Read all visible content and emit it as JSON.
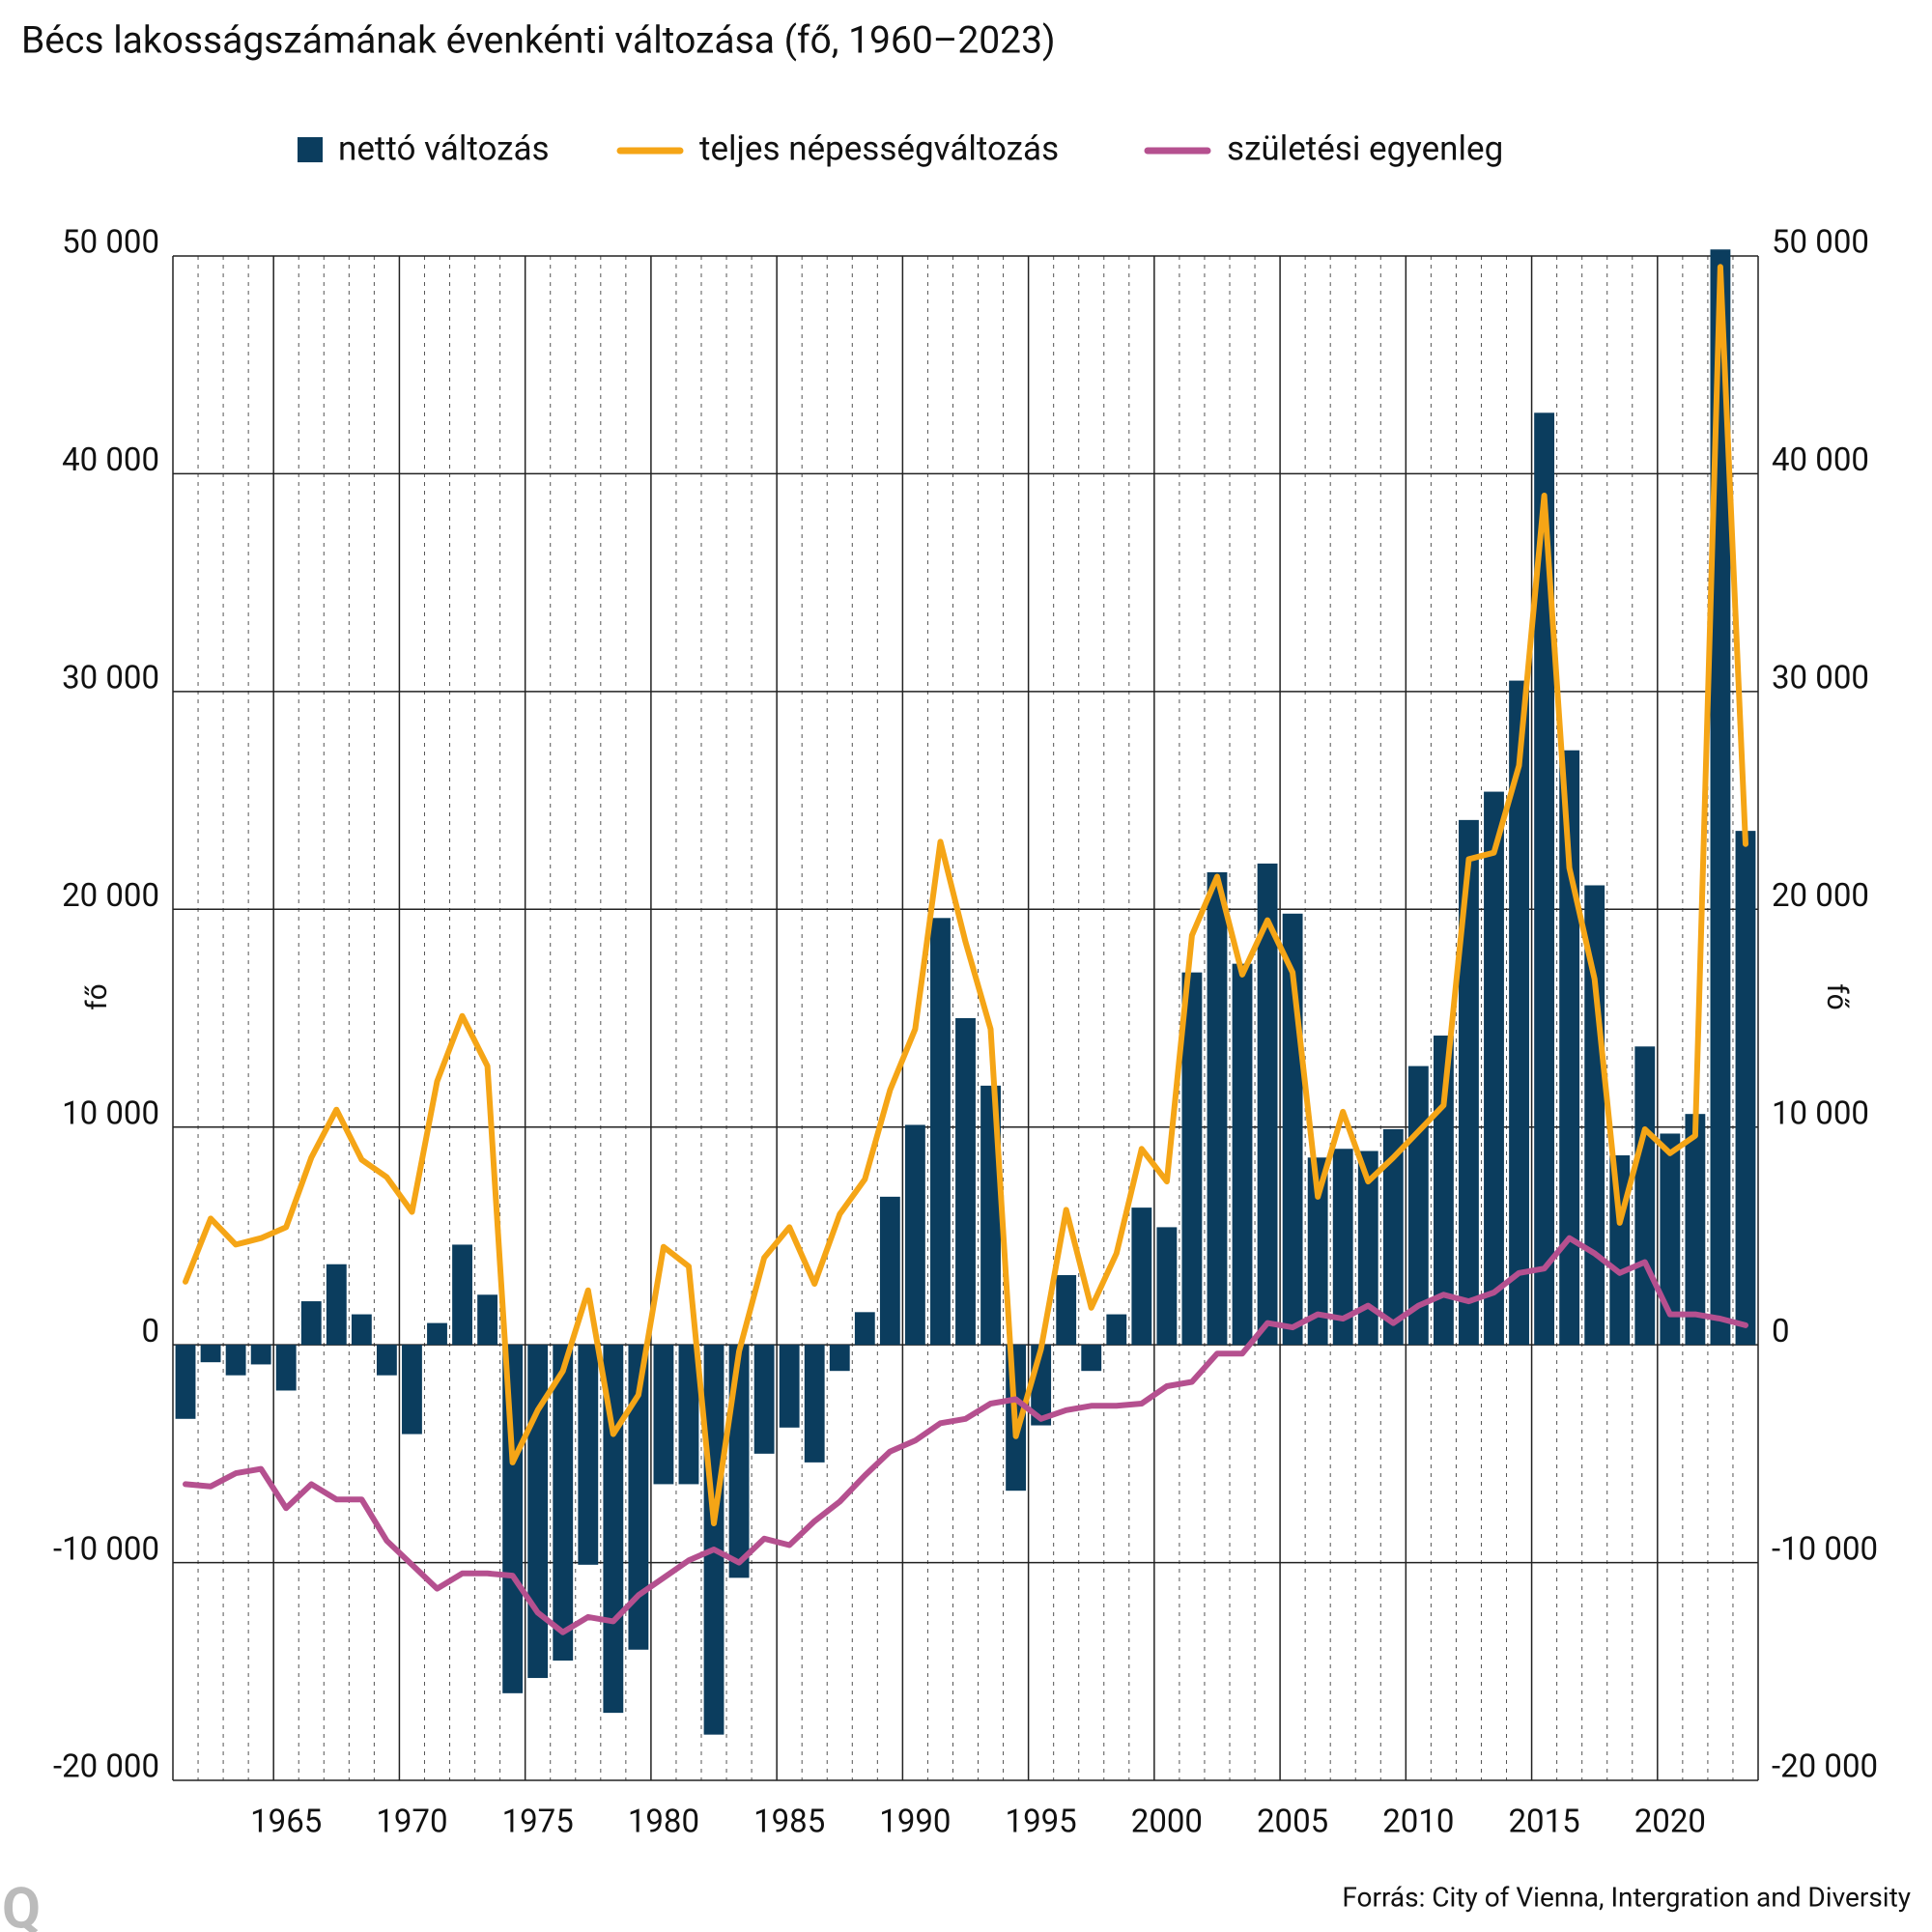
{
  "chart_data": {
    "type": "bar",
    "title": "Bécs lakosságszámának évenkénti változása (fő, 1960–2023)",
    "y_label": "fő",
    "y2_label": "fő",
    "source": "Forrás:  City of Vienna, Intergration and Diversity",
    "logo": "Q",
    "categories": [
      null,
      null,
      null,
      null,
      "1965",
      null,
      null,
      null,
      null,
      "1970",
      null,
      null,
      null,
      null,
      "1975",
      null,
      null,
      null,
      null,
      "1980",
      null,
      null,
      null,
      null,
      "1985",
      null,
      null,
      null,
      null,
      "1990",
      null,
      null,
      null,
      null,
      "1995",
      null,
      null,
      null,
      null,
      "2000",
      null,
      null,
      null,
      null,
      "2005",
      null,
      null,
      null,
      null,
      "2010",
      null,
      null,
      null,
      null,
      "2015",
      null,
      null,
      null,
      null,
      "2020",
      null,
      null,
      null
    ],
    "ylim": [
      -20000,
      50000
    ],
    "yticks": [
      {
        "value": -20000,
        "label": "-20 000"
      },
      {
        "value": -10000,
        "label": "-10 000"
      },
      0,
      {
        "value": 10000,
        "label": "10 000"
      },
      {
        "value": 20000,
        "label": "20 000"
      },
      {
        "value": 30000,
        "label": "30 000"
      },
      {
        "value": 40000,
        "label": "40 000"
      },
      {
        "value": 50000,
        "label": "50 000"
      }
    ],
    "grid": true,
    "legend": "top",
    "series": [
      {
        "name": "nettó változás",
        "type": "bar",
        "color": "#0b3d5e",
        "values": [
          -3400,
          -800,
          -1400,
          -900,
          -2100,
          2000,
          3700,
          1400,
          -1400,
          -4100,
          1000,
          4600,
          2300,
          -16000,
          -15300,
          -14500,
          -10100,
          -16900,
          -14000,
          -6400,
          -6400,
          -17900,
          -10700,
          -5000,
          -3800,
          -5400,
          -1200,
          1500,
          6800,
          10100,
          19600,
          15000,
          11900,
          -6700,
          -3700,
          3200,
          -1200,
          1400,
          6300,
          5400,
          17100,
          21700,
          17500,
          22100,
          19800,
          8600,
          9000,
          8900,
          9900,
          12800,
          14200,
          24100,
          25400,
          30500,
          42800,
          27300,
          21100,
          8700,
          13700,
          9700,
          10600,
          50300,
          23600
        ]
      },
      {
        "name": "teljes népességváltozás",
        "type": "line",
        "color": "#f5a516",
        "values": [
          2900,
          5800,
          4600,
          4900,
          5400,
          8600,
          10800,
          8500,
          7700,
          6100,
          12100,
          15100,
          12800,
          -5400,
          -3000,
          -1200,
          2500,
          -4100,
          -2300,
          4500,
          3600,
          -8200,
          -300,
          4000,
          5400,
          2800,
          6000,
          7600,
          11700,
          14500,
          23100,
          18500,
          14500,
          -4200,
          -200,
          6200,
          1700,
          4200,
          9000,
          7500,
          18800,
          21500,
          17000,
          19500,
          17100,
          6800,
          10700,
          7500,
          8600,
          9800,
          11000,
          22300,
          22600,
          26600,
          39000,
          21900,
          16800,
          5600,
          9900,
          8800,
          9600,
          49500,
          23000
        ]
      },
      {
        "name": "születési egyenleg",
        "type": "line",
        "color": "#b5508f",
        "values": [
          -6400,
          -6500,
          -5900,
          -5700,
          -7500,
          -6400,
          -7100,
          -7100,
          -9000,
          -10100,
          -11200,
          -10500,
          -10500,
          -10600,
          -12300,
          -13200,
          -12500,
          -12700,
          -11500,
          -10700,
          -9900,
          -9400,
          -10000,
          -8900,
          -9200,
          -8100,
          -7200,
          -6000,
          -4900,
          -4400,
          -3600,
          -3400,
          -2700,
          -2500,
          -3400,
          -3000,
          -2800,
          -2800,
          -2700,
          -1900,
          -1700,
          -400,
          -400,
          1000,
          800,
          1400,
          1200,
          1800,
          1000,
          1800,
          2300,
          2000,
          2400,
          3300,
          3500,
          4900,
          4200,
          3300,
          3800,
          1400,
          1400,
          1200,
          900
        ]
      }
    ]
  }
}
